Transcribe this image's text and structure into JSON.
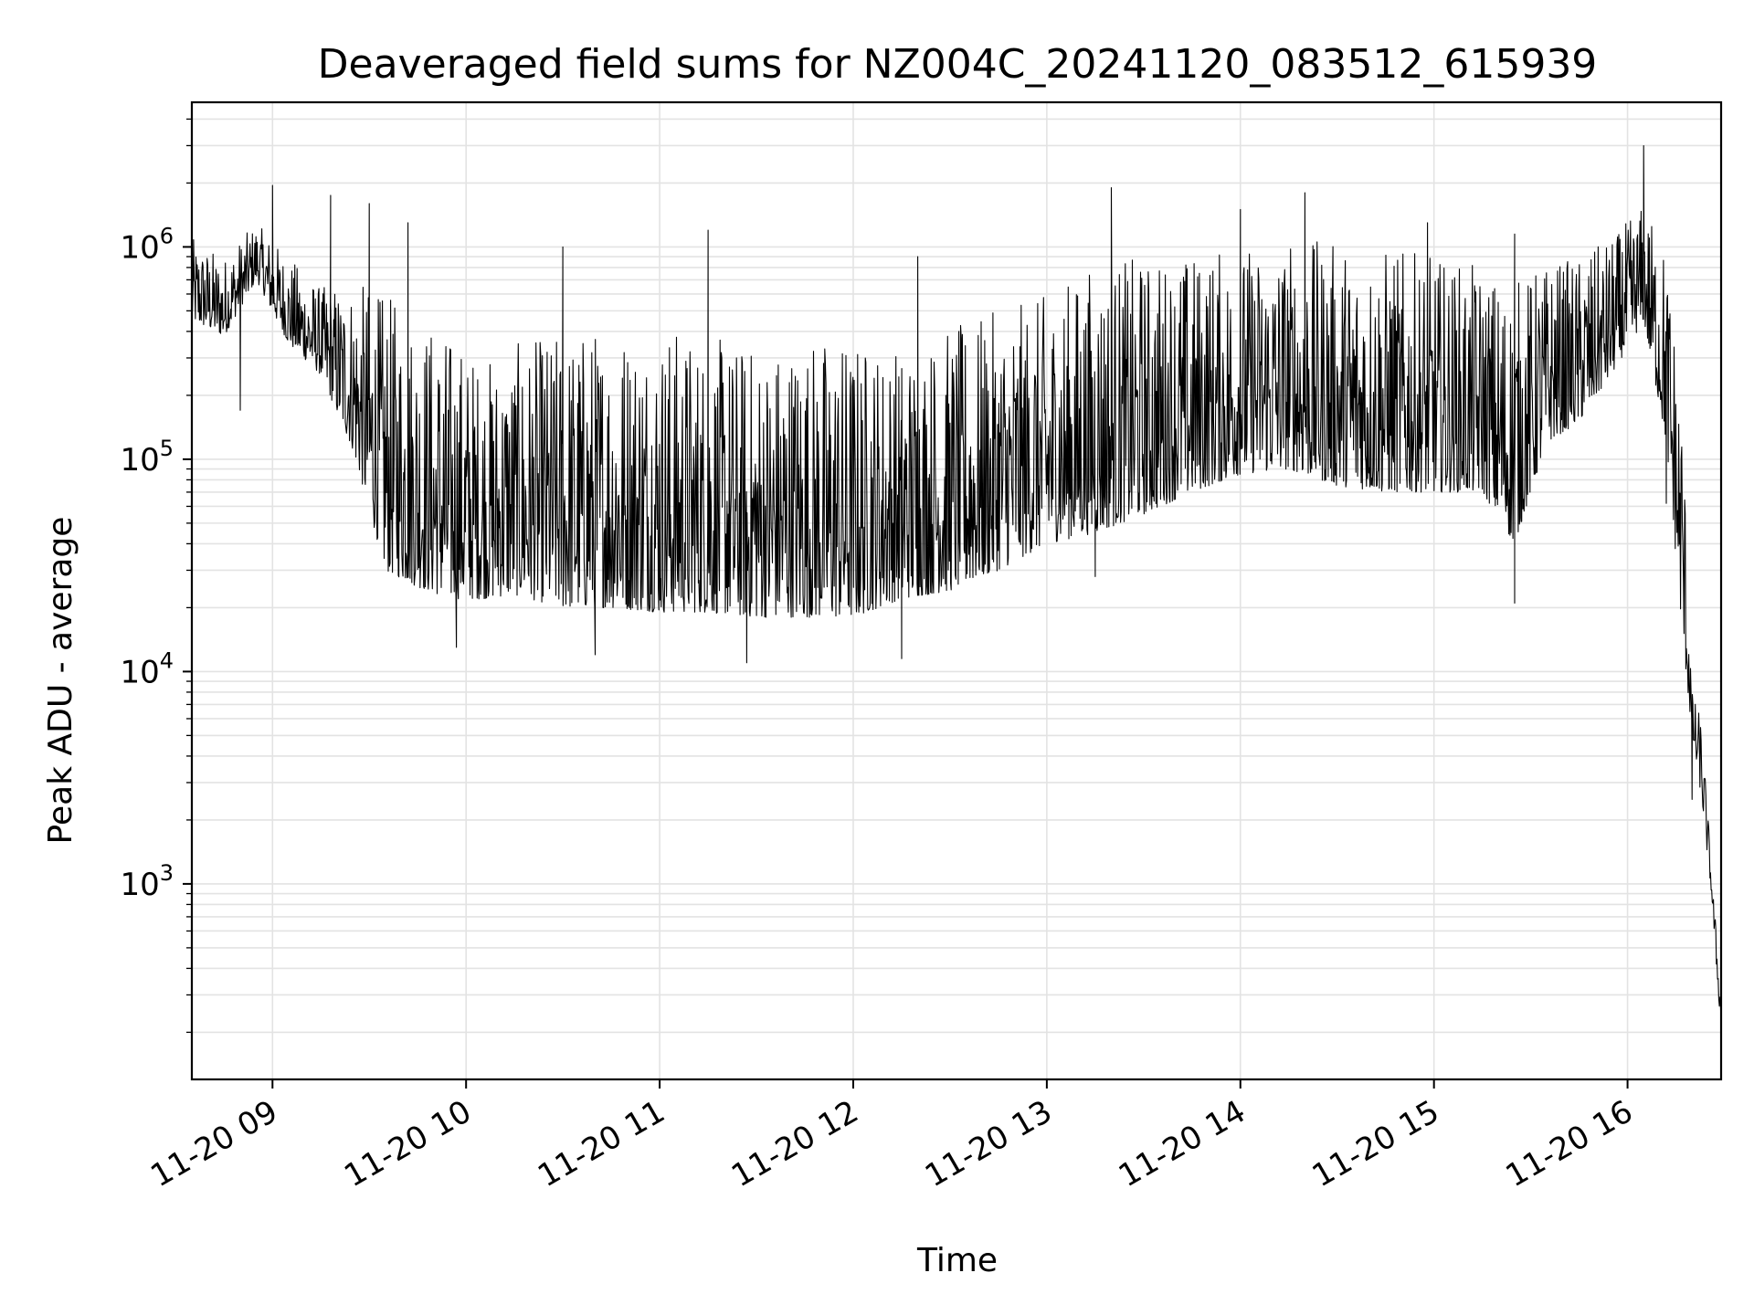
{
  "chart_data": {
    "type": "line",
    "title": "Deaveraged field sums for NZ004C_20241120_083512_615939",
    "xlabel": "Time",
    "ylabel": "Peak ADU - average",
    "y_scale": "log",
    "ylim": [
      120,
      4800000
    ],
    "xlim": [
      "2024-11-20 08:35",
      "2024-11-20 16:29"
    ],
    "grid": true,
    "grid_color": "#e3e3e3",
    "line_color": "#000000",
    "x_ticks": [
      "2024-11-20 09:00",
      "2024-11-20 10:00",
      "2024-11-20 11:00",
      "2024-11-20 12:00",
      "2024-11-20 13:00",
      "2024-11-20 14:00",
      "2024-11-20 15:00",
      "2024-11-20 16:00"
    ],
    "x_tick_labels": [
      "11-20 09",
      "11-20 10",
      "11-20 11",
      "11-20 12",
      "11-20 13",
      "11-20 14",
      "11-20 15",
      "11-20 16"
    ],
    "y_ticks": [
      1000,
      10000,
      100000,
      1000000
    ],
    "y_tick_labels": [
      {
        "base": "10",
        "exp": "3"
      },
      {
        "base": "10",
        "exp": "4"
      },
      {
        "base": "10",
        "exp": "5"
      },
      {
        "base": "10",
        "exp": "6"
      }
    ],
    "series": [
      {
        "envelope": {
          "t": [
            "2024-11-20 08:35",
            "2024-11-20 08:45",
            "2024-11-20 08:55",
            "2024-11-20 09:05",
            "2024-11-20 09:15",
            "2024-11-20 09:25",
            "2024-11-20 09:35",
            "2024-11-20 09:45",
            "2024-11-20 09:55",
            "2024-11-20 10:05",
            "2024-11-20 10:15",
            "2024-11-20 10:30",
            "2024-11-20 10:45",
            "2024-11-20 11:00",
            "2024-11-20 11:15",
            "2024-11-20 11:30",
            "2024-11-20 11:45",
            "2024-11-20 12:00",
            "2024-11-20 12:15",
            "2024-11-20 12:30",
            "2024-11-20 12:45",
            "2024-11-20 13:00",
            "2024-11-20 13:15",
            "2024-11-20 13:30",
            "2024-11-20 13:45",
            "2024-11-20 14:00",
            "2024-11-20 14:15",
            "2024-11-20 14:30",
            "2024-11-20 14:45",
            "2024-11-20 15:00",
            "2024-11-20 15:15",
            "2024-11-20 15:25",
            "2024-11-20 15:35",
            "2024-11-20 15:45",
            "2024-11-20 15:55",
            "2024-11-20 16:05",
            "2024-11-20 16:12",
            "2024-11-20 16:17",
            "2024-11-20 16:20",
            "2024-11-20 16:23",
            "2024-11-20 16:26",
            "2024-11-20 16:29"
          ],
          "low": [
            450000,
            380000,
            700000,
            350000,
            250000,
            110000,
            30000,
            25000,
            22000,
            22000,
            23000,
            20000,
            20000,
            19000,
            19000,
            18000,
            18000,
            18000,
            22000,
            24000,
            30000,
            40000,
            45000,
            55000,
            70000,
            85000,
            90000,
            75000,
            70000,
            70000,
            70000,
            40000,
            120000,
            150000,
            250000,
            450000,
            120000,
            15000,
            5000,
            2500,
            900,
            200
          ],
          "high": [
            1100000,
            900000,
            1300000,
            900000,
            650000,
            700000,
            600000,
            500000,
            400000,
            300000,
            350000,
            400000,
            450000,
            450000,
            380000,
            350000,
            400000,
            380000,
            350000,
            420000,
            500000,
            600000,
            850000,
            900000,
            950000,
            1000000,
            1100000,
            1050000,
            1000000,
            900000,
            800000,
            700000,
            850000,
            900000,
            1100000,
            1600000,
            1000000,
            200000,
            8000,
            6000,
            1200,
            300
          ]
        },
        "peaks": [
          {
            "t": "2024-11-20 09:00",
            "y": 1950000
          },
          {
            "t": "2024-11-20 09:18",
            "y": 1750000
          },
          {
            "t": "2024-11-20 09:30",
            "y": 1600000
          },
          {
            "t": "2024-11-20 09:42",
            "y": 1300000
          },
          {
            "t": "2024-11-20 10:30",
            "y": 1000000
          },
          {
            "t": "2024-11-20 11:15",
            "y": 1200000
          },
          {
            "t": "2024-11-20 12:20",
            "y": 900000
          },
          {
            "t": "2024-11-20 13:20",
            "y": 1900000
          },
          {
            "t": "2024-11-20 14:00",
            "y": 1500000
          },
          {
            "t": "2024-11-20 14:20",
            "y": 1800000
          },
          {
            "t": "2024-11-20 14:58",
            "y": 1300000
          },
          {
            "t": "2024-11-20 15:25",
            "y": 1150000
          },
          {
            "t": "2024-11-20 16:05",
            "y": 3000000
          }
        ],
        "troughs": [
          {
            "t": "2024-11-20 08:50",
            "y": 170000
          },
          {
            "t": "2024-11-20 09:57",
            "y": 13000
          },
          {
            "t": "2024-11-20 10:40",
            "y": 12000
          },
          {
            "t": "2024-11-20 11:27",
            "y": 11000
          },
          {
            "t": "2024-11-20 12:15",
            "y": 11500
          },
          {
            "t": "2024-11-20 13:15",
            "y": 28000
          },
          {
            "t": "2024-11-20 15:25",
            "y": 21000
          },
          {
            "t": "2024-11-20 16:12",
            "y": 62000
          },
          {
            "t": "2024-11-20 16:20",
            "y": 2500
          }
        ]
      }
    ]
  }
}
